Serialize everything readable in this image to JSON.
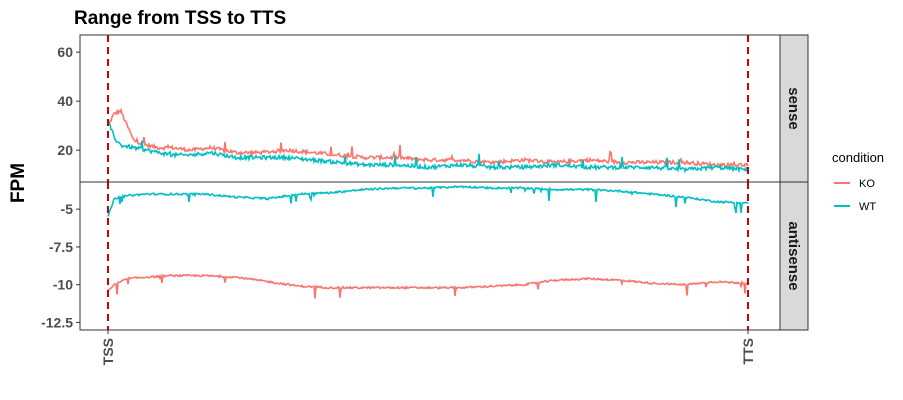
{
  "chart_data": {
    "type": "line",
    "title": "Range from TSS to TTS",
    "xlabel": "",
    "ylabel": "FPM",
    "x_ticks": [
      "TSS",
      "TTS"
    ],
    "x_range": [
      0,
      1
    ],
    "grid": false,
    "legend": {
      "title": "condition",
      "position": "right",
      "entries": [
        {
          "name": "KO",
          "color": "#F8766D"
        },
        {
          "name": "WT",
          "color": "#00BFC4"
        }
      ]
    },
    "reference_lines": [
      {
        "label": "TSS",
        "x": 0.0,
        "color": "#CC0000",
        "style": "dashed"
      },
      {
        "label": "TTS",
        "x": 1.0,
        "color": "#CC0000",
        "style": "dashed"
      }
    ],
    "panels": [
      {
        "strip": "sense",
        "ylim": [
          7,
          67
        ],
        "y_ticks": [
          20,
          40,
          60
        ],
        "series": [
          {
            "name": "KO",
            "x": [
              0,
              0.01,
              0.02,
              0.04,
              0.06,
              0.08,
              0.1,
              0.13,
              0.16,
              0.2,
              0.24,
              0.28,
              0.32,
              0.36,
              0.4,
              0.45,
              0.5,
              0.55,
              0.6,
              0.65,
              0.7,
              0.75,
              0.8,
              0.85,
              0.9,
              0.95,
              1
            ],
            "y": [
              30,
              35,
              36,
              24,
              22,
              21,
              21,
              20,
              21,
              19,
              19,
              20,
              19,
              18,
              17,
              17,
              16,
              16,
              15,
              16,
              15,
              16,
              15,
              15,
              15,
              14,
              14
            ]
          },
          {
            "name": "WT",
            "x": [
              0,
              0.01,
              0.02,
              0.04,
              0.06,
              0.08,
              0.1,
              0.13,
              0.16,
              0.2,
              0.24,
              0.28,
              0.32,
              0.36,
              0.4,
              0.45,
              0.5,
              0.55,
              0.6,
              0.65,
              0.7,
              0.75,
              0.8,
              0.85,
              0.9,
              0.95,
              1
            ],
            "y": [
              32,
              25,
              22,
              21,
              20,
              19,
              18,
              18,
              19,
              17,
              17,
              17,
              16,
              15,
              14,
              14,
              13,
              14,
              13,
              13,
              14,
              13,
              13,
              13,
              12,
              13,
              12
            ]
          }
        ]
      },
      {
        "strip": "antisense",
        "ylim": [
          -13.0,
          -3.2
        ],
        "y_ticks": [
          -12.5,
          -10.0,
          -7.5,
          -5.0
        ],
        "series": [
          {
            "name": "KO",
            "x": [
              0,
              0.01,
              0.03,
              0.06,
              0.1,
              0.15,
              0.2,
              0.25,
              0.3,
              0.35,
              0.4,
              0.45,
              0.5,
              0.55,
              0.6,
              0.65,
              0.7,
              0.75,
              0.8,
              0.85,
              0.9,
              0.95,
              1
            ],
            "y": [
              -10.4,
              -10.0,
              -9.6,
              -9.5,
              -9.4,
              -9.4,
              -9.5,
              -9.8,
              -10.1,
              -10.2,
              -10.2,
              -10.2,
              -10.2,
              -10.2,
              -10.1,
              -10.0,
              -9.7,
              -9.6,
              -9.7,
              -9.9,
              -10.0,
              -9.8,
              -9.9
            ]
          },
          {
            "name": "WT",
            "x": [
              0,
              0.01,
              0.03,
              0.06,
              0.1,
              0.15,
              0.2,
              0.25,
              0.3,
              0.35,
              0.4,
              0.45,
              0.5,
              0.55,
              0.6,
              0.65,
              0.7,
              0.75,
              0.8,
              0.85,
              0.9,
              0.95,
              1
            ],
            "y": [
              -5.5,
              -4.3,
              -4.1,
              -4.0,
              -4.0,
              -4.0,
              -4.2,
              -4.3,
              -4.0,
              -3.9,
              -3.7,
              -3.6,
              -3.6,
              -3.5,
              -3.6,
              -3.6,
              -3.7,
              -3.7,
              -3.8,
              -4.0,
              -4.2,
              -4.5,
              -4.6
            ]
          }
        ]
      }
    ]
  }
}
